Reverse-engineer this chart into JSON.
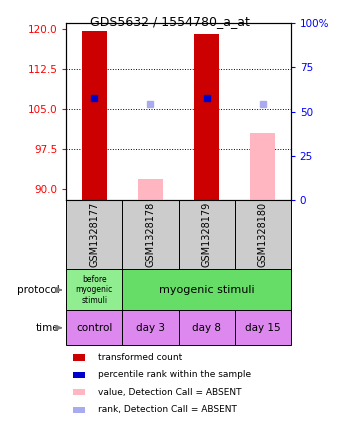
{
  "title": "GDS5632 / 1554780_a_at",
  "samples": [
    "GSM1328177",
    "GSM1328178",
    "GSM1328179",
    "GSM1328180"
  ],
  "x_positions": [
    0,
    1,
    2,
    3
  ],
  "ylim_left": [
    88,
    121
  ],
  "ylim_right": [
    0,
    100
  ],
  "yticks_left": [
    90,
    97.5,
    105,
    112.5,
    120
  ],
  "yticks_right": [
    0,
    25,
    50,
    75,
    100
  ],
  "red_bar_tops": [
    119.5,
    null,
    119.0,
    null
  ],
  "red_bar_color": "#cc0000",
  "pink_bar_tops": [
    null,
    92.0,
    null,
    100.5
  ],
  "pink_bar_color": "#ffb6c1",
  "blue_square_y": [
    107.0,
    null,
    107.0,
    null
  ],
  "blue_square_color": "#0000cc",
  "lightblue_square_y": [
    null,
    106.0,
    null,
    106.0
  ],
  "lightblue_square_color": "#aaaaee",
  "bar_width": 0.45,
  "marker_size": 5,
  "grid_color": "black",
  "protocol_col1_color": "#90ee90",
  "protocol_col2_color": "#66dd66",
  "time_color": "#dd88ee",
  "sample_box_color": "#cccccc",
  "time_labels": [
    "control",
    "day 3",
    "day 8",
    "day 15"
  ],
  "legend_items": [
    {
      "color": "#cc0000",
      "label": "transformed count"
    },
    {
      "color": "#0000cc",
      "label": "percentile rank within the sample"
    },
    {
      "color": "#ffb6c1",
      "label": "value, Detection Call = ABSENT"
    },
    {
      "color": "#aaaaee",
      "label": "rank, Detection Call = ABSENT"
    }
  ]
}
